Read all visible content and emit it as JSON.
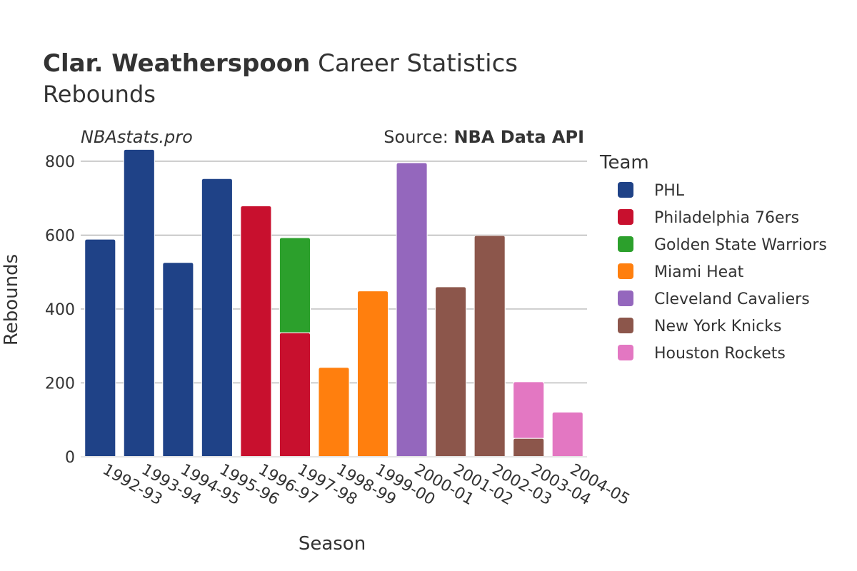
{
  "chart_data": {
    "type": "bar",
    "stacked": true,
    "title_bold": "Clar. Weatherspoon",
    "title_rest": "Career Statistics",
    "subtitle": "Rebounds",
    "brand": "NBAstats.pro",
    "source_label": "Source:",
    "source_name": "NBA Data API",
    "xlabel": "Season",
    "ylabel": "Rebounds",
    "ylim": [
      0,
      850
    ],
    "yticks": [
      0,
      200,
      400,
      600,
      800
    ],
    "grid": true,
    "legend_title": "Team",
    "legend_position": "right",
    "categories": [
      "1992-93",
      "1993-94",
      "1994-95",
      "1995-96",
      "1996-97",
      "1997-98",
      "1998-99",
      "1999-00",
      "2000-01",
      "2001-02",
      "2002-03",
      "2003-04",
      "2004-05"
    ],
    "series": [
      {
        "name": "PHL",
        "color": "#1f4287",
        "values": [
          589,
          832,
          526,
          753,
          0,
          0,
          0,
          0,
          0,
          0,
          0,
          0,
          0
        ]
      },
      {
        "name": "Philadelphia 76ers",
        "color": "#c8102e",
        "values": [
          0,
          0,
          0,
          0,
          679,
          336,
          0,
          0,
          0,
          0,
          0,
          0,
          0
        ]
      },
      {
        "name": "Golden State Warriors",
        "color": "#2ca02c",
        "values": [
          0,
          0,
          0,
          0,
          0,
          257,
          0,
          0,
          0,
          0,
          0,
          0,
          0
        ]
      },
      {
        "name": "Miami Heat",
        "color": "#ff7f0e",
        "values": [
          0,
          0,
          0,
          0,
          0,
          0,
          242,
          449,
          0,
          0,
          0,
          0,
          0
        ]
      },
      {
        "name": "Cleveland Cavaliers",
        "color": "#9467bd",
        "values": [
          0,
          0,
          0,
          0,
          0,
          0,
          0,
          0,
          796,
          0,
          0,
          0,
          0
        ]
      },
      {
        "name": "New York Knicks",
        "color": "#8c564b",
        "values": [
          0,
          0,
          0,
          0,
          0,
          0,
          0,
          0,
          0,
          460,
          599,
          50,
          0
        ]
      },
      {
        "name": "Houston Rockets",
        "color": "#e377c2",
        "values": [
          0,
          0,
          0,
          0,
          0,
          0,
          0,
          0,
          0,
          0,
          0,
          153,
          121
        ]
      }
    ]
  }
}
